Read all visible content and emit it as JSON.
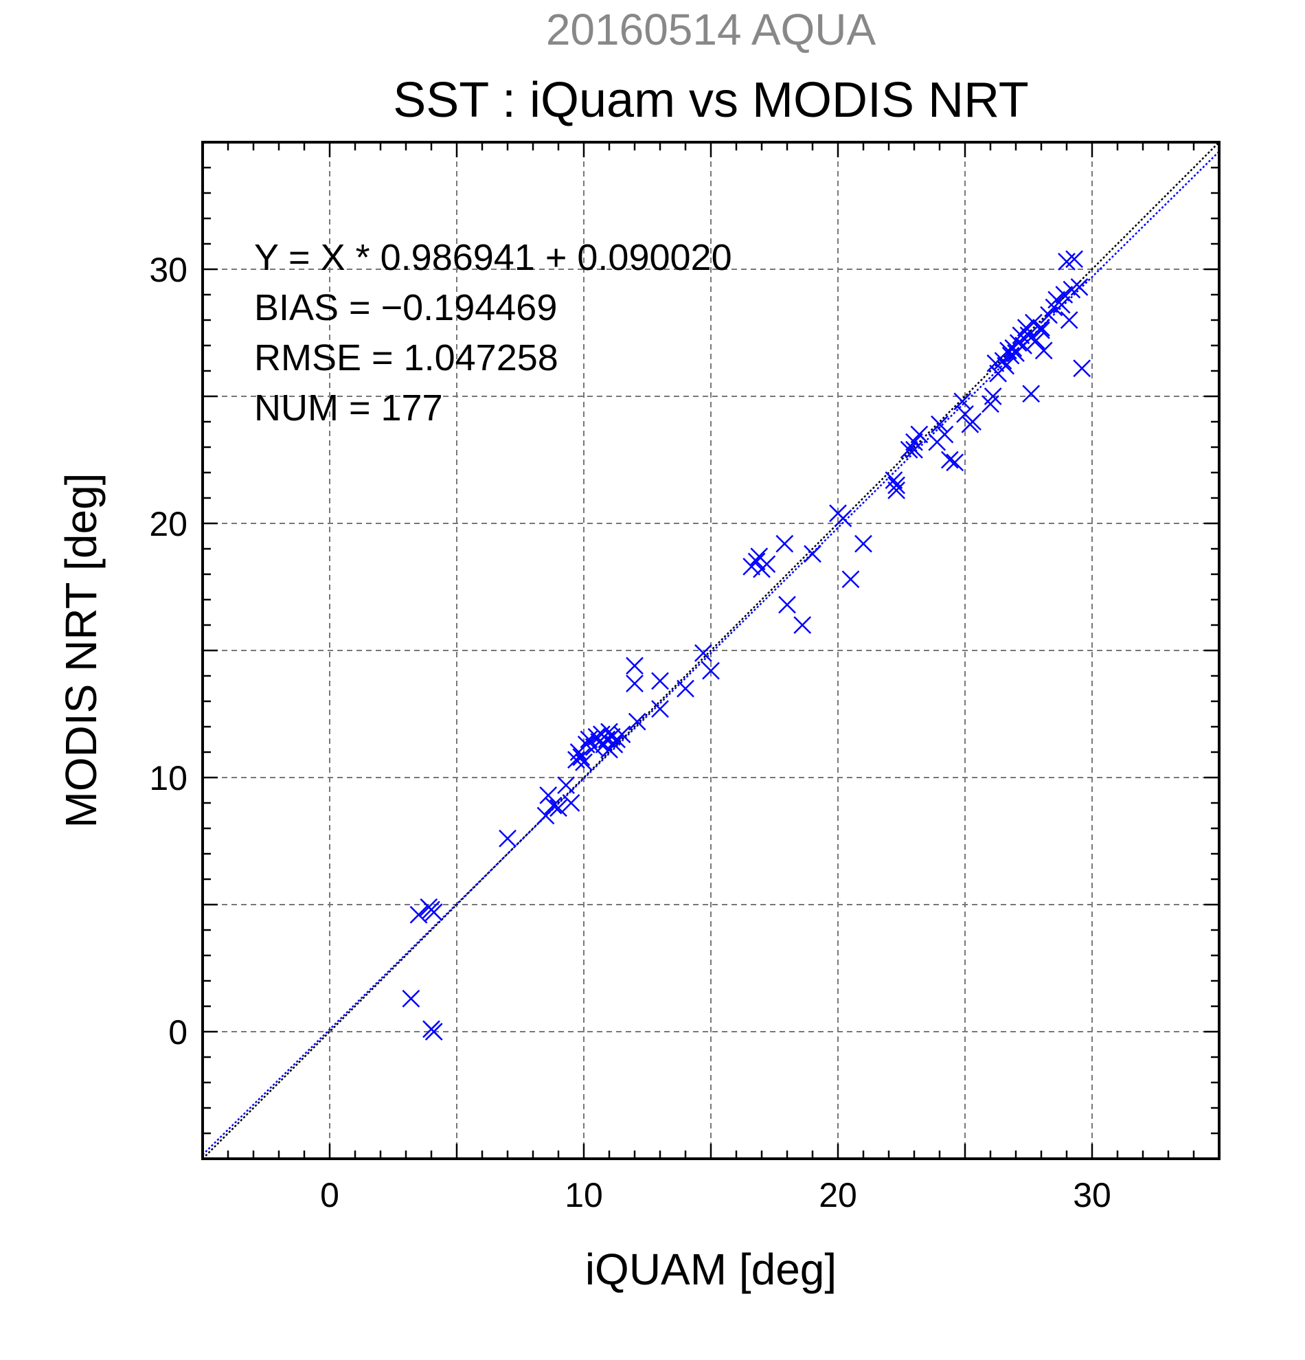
{
  "header": {
    "date_satellite": "20160514 AQUA",
    "title": "SST : iQuam vs MODIS NRT"
  },
  "stats": {
    "equation": "Y = X * 0.986941 + 0.090020",
    "bias": "BIAS = −0.194469",
    "rmse": "RMSE = 1.047258",
    "num": "NUM = 177"
  },
  "colors": {
    "points": "#0000ff",
    "fit_line": "#0000ff",
    "identity_line": "#000000",
    "grid": "#777777"
  },
  "chart_data": {
    "type": "scatter",
    "title": "SST : iQuam vs MODIS NRT",
    "subtitle": "20160514 AQUA",
    "xlabel": "iQUAM [deg]",
    "ylabel": "MODIS NRT [deg]",
    "xlim": [
      -5,
      35
    ],
    "ylim": [
      -5,
      35
    ],
    "xticks": [
      0,
      10,
      20,
      30
    ],
    "yticks": [
      0,
      10,
      20,
      30
    ],
    "xtick_labels": [
      "0",
      "10",
      "20",
      "30"
    ],
    "ytick_labels": [
      "0",
      "10",
      "20",
      "30"
    ],
    "grid": true,
    "marker": "x",
    "lines": [
      {
        "kind": "identity",
        "slope": 1.0,
        "intercept": 0.0,
        "style": "dotted",
        "color": "#000000"
      },
      {
        "kind": "regression",
        "slope": 0.986941,
        "intercept": 0.09002,
        "style": "dotted",
        "color": "#0000ff"
      }
    ],
    "series": [
      {
        "x": [
          3.2,
          3.5,
          3.9,
          4.0,
          4.1,
          4.0,
          4.1,
          7.0,
          8.5,
          8.6,
          8.8,
          9.0,
          9.3,
          9.5,
          9.7,
          9.8,
          9.9,
          10.0,
          10.1,
          10.2,
          10.4,
          10.5,
          10.6,
          10.7,
          10.8,
          10.9,
          11.0,
          11.0,
          11.1,
          11.2,
          11.3,
          11.5,
          12.0,
          12.0,
          12.1,
          13.0,
          13.0,
          14.0,
          14.7,
          15.0,
          16.6,
          16.8,
          16.9,
          17.0,
          17.2,
          17.9,
          18.0,
          18.6,
          19.0,
          20.0,
          20.2,
          20.5,
          21.0,
          22.2,
          22.3,
          22.3,
          22.8,
          23.0,
          23.0,
          23.2,
          23.9,
          24.0,
          24.2,
          24.4,
          24.6,
          24.9,
          25.0,
          25.2,
          25.3,
          26.0,
          26.1,
          26.2,
          26.3,
          26.5,
          26.6,
          26.7,
          26.8,
          26.9,
          27.0,
          27.1,
          27.2,
          27.3,
          27.4,
          27.5,
          27.6,
          27.7,
          27.8,
          28.0,
          28.0,
          28.1,
          28.3,
          28.5,
          28.6,
          28.8,
          28.9,
          29.0,
          29.1,
          29.2,
          29.3,
          29.5,
          29.6
        ],
        "y": [
          1.3,
          4.6,
          4.9,
          4.8,
          4.7,
          0.1,
          0.0,
          7.6,
          8.5,
          9.3,
          8.9,
          8.8,
          9.7,
          9.0,
          10.7,
          11.0,
          10.8,
          10.6,
          11.3,
          11.5,
          11.2,
          11.6,
          11.4,
          11.7,
          11.3,
          11.5,
          11.8,
          11.1,
          11.6,
          11.3,
          11.5,
          11.7,
          14.4,
          13.7,
          12.2,
          13.8,
          12.7,
          13.5,
          14.9,
          14.2,
          18.3,
          18.5,
          18.7,
          18.2,
          18.4,
          19.2,
          16.8,
          16.0,
          18.8,
          20.4,
          20.2,
          17.8,
          19.2,
          21.7,
          21.5,
          21.3,
          22.9,
          23.2,
          22.9,
          23.5,
          23.2,
          23.9,
          23.5,
          22.5,
          22.4,
          24.8,
          24.3,
          23.9,
          24.0,
          24.7,
          25.0,
          26.3,
          25.9,
          26.4,
          26.2,
          26.8,
          26.6,
          26.9,
          26.7,
          27.1,
          27.4,
          27.0,
          27.7,
          27.4,
          25.1,
          27.9,
          27.2,
          27.7,
          27.6,
          26.8,
          28.2,
          28.5,
          28.8,
          28.6,
          29.0,
          30.3,
          28.0,
          29.2,
          30.4,
          29.3,
          26.1
        ]
      }
    ]
  }
}
